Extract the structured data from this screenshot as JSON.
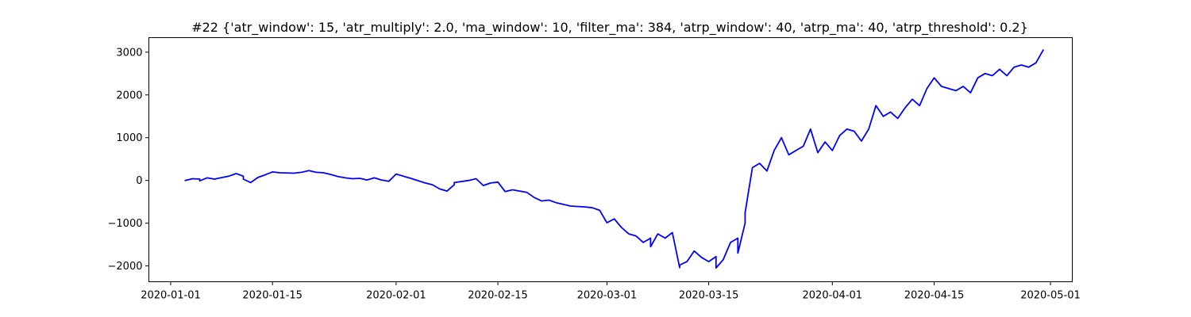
{
  "chart_data": {
    "type": "line",
    "title": "#22 {'atr_window': 15, 'atr_multiply': 2.0, 'ma_window': 10, 'filter_ma': 384, 'atrp_window': 40, 'atrp_ma': 40, 'atrp_threshold': 0.2}",
    "xlabel": "",
    "ylabel": "",
    "x_axis_type": "date",
    "xlim": [
      "2019-12-29",
      "2020-05-04"
    ],
    "ylim": [
      -2370,
      3340
    ],
    "grid": false,
    "x_ticks": [
      "2020-01-01",
      "2020-01-15",
      "2020-02-01",
      "2020-02-15",
      "2020-03-01",
      "2020-03-15",
      "2020-04-01",
      "2020-04-15",
      "2020-05-01"
    ],
    "y_ticks": [
      -2000,
      -1000,
      0,
      1000,
      2000,
      3000
    ],
    "y_tick_labels": [
      "−2000",
      "−1000",
      "0",
      "1000",
      "2000",
      "3000"
    ],
    "series": [
      {
        "color": "#0000ff",
        "points": [
          [
            "2020-01-03",
            0
          ],
          [
            "2020-01-04",
            40
          ],
          [
            "2020-01-05",
            30
          ],
          [
            "2020-01-05",
            -10
          ],
          [
            "2020-01-06",
            60
          ],
          [
            "2020-01-07",
            30
          ],
          [
            "2020-01-09",
            100
          ],
          [
            "2020-01-10",
            160
          ],
          [
            "2020-01-11",
            100
          ],
          [
            "2020-01-11",
            30
          ],
          [
            "2020-01-12",
            -50
          ],
          [
            "2020-01-13",
            70
          ],
          [
            "2020-01-14",
            130
          ],
          [
            "2020-01-15",
            200
          ],
          [
            "2020-01-16",
            180
          ],
          [
            "2020-01-18",
            170
          ],
          [
            "2020-01-19",
            190
          ],
          [
            "2020-01-20",
            230
          ],
          [
            "2020-01-21",
            190
          ],
          [
            "2020-01-22",
            180
          ],
          [
            "2020-01-23",
            140
          ],
          [
            "2020-01-24",
            90
          ],
          [
            "2020-01-25",
            60
          ],
          [
            "2020-01-26",
            40
          ],
          [
            "2020-01-27",
            50
          ],
          [
            "2020-01-28",
            10
          ],
          [
            "2020-01-29",
            60
          ],
          [
            "2020-01-30",
            10
          ],
          [
            "2020-01-31",
            -20
          ],
          [
            "2020-02-01",
            150
          ],
          [
            "2020-02-03",
            50
          ],
          [
            "2020-02-05",
            -60
          ],
          [
            "2020-02-06",
            -100
          ],
          [
            "2020-02-07",
            -200
          ],
          [
            "2020-02-08",
            -250
          ],
          [
            "2020-02-09",
            -100
          ],
          [
            "2020-02-09",
            -50
          ],
          [
            "2020-02-11",
            0
          ],
          [
            "2020-02-12",
            40
          ],
          [
            "2020-02-13",
            -120
          ],
          [
            "2020-02-14",
            -60
          ],
          [
            "2020-02-15",
            -40
          ],
          [
            "2020-02-16",
            -260
          ],
          [
            "2020-02-17",
            -220
          ],
          [
            "2020-02-18",
            -250
          ],
          [
            "2020-02-19",
            -280
          ],
          [
            "2020-02-20",
            -400
          ],
          [
            "2020-02-21",
            -480
          ],
          [
            "2020-02-22",
            -460
          ],
          [
            "2020-02-23",
            -520
          ],
          [
            "2020-02-25",
            -600
          ],
          [
            "2020-02-27",
            -620
          ],
          [
            "2020-02-28",
            -640
          ],
          [
            "2020-02-29",
            -700
          ],
          [
            "2020-03-01",
            -990
          ],
          [
            "2020-03-02",
            -900
          ],
          [
            "2020-03-03",
            -1100
          ],
          [
            "2020-03-04",
            -1250
          ],
          [
            "2020-03-05",
            -1300
          ],
          [
            "2020-03-06",
            -1450
          ],
          [
            "2020-03-07",
            -1350
          ],
          [
            "2020-03-07",
            -1550
          ],
          [
            "2020-03-08",
            -1250
          ],
          [
            "2020-03-09",
            -1350
          ],
          [
            "2020-03-10",
            -1220
          ],
          [
            "2020-03-11",
            -2040
          ],
          [
            "2020-03-11",
            -1980
          ],
          [
            "2020-03-12",
            -1900
          ],
          [
            "2020-03-13",
            -1650
          ],
          [
            "2020-03-14",
            -1800
          ],
          [
            "2020-03-15",
            -1900
          ],
          [
            "2020-03-16",
            -1780
          ],
          [
            "2020-03-16",
            -2050
          ],
          [
            "2020-03-17",
            -1850
          ],
          [
            "2020-03-18",
            -1450
          ],
          [
            "2020-03-19",
            -1350
          ],
          [
            "2020-03-19",
            -1700
          ],
          [
            "2020-03-20",
            -1000
          ],
          [
            "2020-03-20",
            -760
          ],
          [
            "2020-03-21",
            300
          ],
          [
            "2020-03-22",
            400
          ],
          [
            "2020-03-23",
            220
          ],
          [
            "2020-03-24",
            700
          ],
          [
            "2020-03-25",
            1000
          ],
          [
            "2020-03-26",
            600
          ],
          [
            "2020-03-27",
            700
          ],
          [
            "2020-03-28",
            800
          ],
          [
            "2020-03-29",
            1200
          ],
          [
            "2020-03-30",
            650
          ],
          [
            "2020-03-31",
            900
          ],
          [
            "2020-04-01",
            700
          ],
          [
            "2020-04-02",
            1050
          ],
          [
            "2020-04-03",
            1200
          ],
          [
            "2020-04-04",
            1150
          ],
          [
            "2020-04-05",
            920
          ],
          [
            "2020-04-06",
            1200
          ],
          [
            "2020-04-07",
            1750
          ],
          [
            "2020-04-08",
            1500
          ],
          [
            "2020-04-09",
            1600
          ],
          [
            "2020-04-10",
            1450
          ],
          [
            "2020-04-11",
            1700
          ],
          [
            "2020-04-12",
            1900
          ],
          [
            "2020-04-13",
            1750
          ],
          [
            "2020-04-14",
            2150
          ],
          [
            "2020-04-15",
            2400
          ],
          [
            "2020-04-16",
            2200
          ],
          [
            "2020-04-17",
            2150
          ],
          [
            "2020-04-18",
            2100
          ],
          [
            "2020-04-19",
            2200
          ],
          [
            "2020-04-20",
            2050
          ],
          [
            "2020-04-21",
            2400
          ],
          [
            "2020-04-22",
            2500
          ],
          [
            "2020-04-23",
            2450
          ],
          [
            "2020-04-24",
            2600
          ],
          [
            "2020-04-25",
            2450
          ],
          [
            "2020-04-26",
            2650
          ],
          [
            "2020-04-27",
            2700
          ],
          [
            "2020-04-28",
            2650
          ],
          [
            "2020-04-29",
            2750
          ],
          [
            "2020-04-30",
            3050
          ]
        ]
      }
    ]
  }
}
